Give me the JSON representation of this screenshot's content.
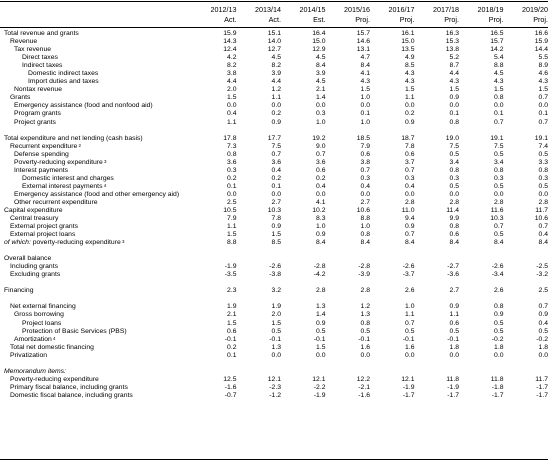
{
  "years": [
    "2012/13",
    "2013/14",
    "2014/15",
    "2015/16",
    "2016/17",
    "2017/18",
    "2018/19",
    "2019/20"
  ],
  "statuses": [
    "Act.",
    "Act.",
    "Est.",
    "Proj.",
    "Proj.",
    "Proj.",
    "Proj.",
    "Proj."
  ],
  "rows": [
    {
      "label": "Total revenue and grants",
      "indent": 0,
      "values": [
        "15.9",
        "15.1",
        "16.4",
        "15.7",
        "16.1",
        "16.3",
        "16.5",
        "16.6"
      ]
    },
    {
      "label": "Revenue",
      "indent": 1,
      "values": [
        "14.3",
        "14.0",
        "15.0",
        "14.6",
        "15.0",
        "15.3",
        "15.7",
        "15.9"
      ]
    },
    {
      "label": "Tax revenue",
      "indent": 2,
      "values": [
        "12.4",
        "12.7",
        "12.9",
        "13.1",
        "13.5",
        "13.8",
        "14.2",
        "14.4"
      ]
    },
    {
      "label": "Direct taxes",
      "indent": 3,
      "values": [
        "4.2",
        "4.5",
        "4.5",
        "4.7",
        "4.9",
        "5.2",
        "5.4",
        "5.5"
      ]
    },
    {
      "label": "Indirect taxes",
      "indent": 3,
      "values": [
        "8.2",
        "8.2",
        "8.4",
        "8.4",
        "8.5",
        "8.7",
        "8.8",
        "8.9"
      ]
    },
    {
      "label": "Domestic indirect taxes",
      "indent": 4,
      "values": [
        "3.8",
        "3.9",
        "3.9",
        "4.1",
        "4.3",
        "4.4",
        "4.5",
        "4.6"
      ]
    },
    {
      "label": "Import duties and taxes",
      "indent": 4,
      "values": [
        "4.4",
        "4.4",
        "4.5",
        "4.3",
        "4.3",
        "4.3",
        "4.3",
        "4.3"
      ]
    },
    {
      "label": "Nontax revenue",
      "indent": 2,
      "values": [
        "2.0",
        "1.2",
        "2.1",
        "1.5",
        "1.5",
        "1.5",
        "1.5",
        "1.5"
      ]
    },
    {
      "label": "Grants",
      "indent": 1,
      "values": [
        "1.5",
        "1.1",
        "1.4",
        "1.0",
        "1.1",
        "0.9",
        "0.8",
        "0.7"
      ]
    },
    {
      "label": "Emergency assistance (food and nonfood aid)",
      "indent": 2,
      "values": [
        "0.0",
        "0.0",
        "0.0",
        "0.0",
        "0.0",
        "0.0",
        "0.0",
        "0.0"
      ]
    },
    {
      "label": "Program grants",
      "indent": 2,
      "values": [
        "0.4",
        "0.2",
        "0.3",
        "0.1",
        "0.2",
        "0.1",
        "0.1",
        "0.1"
      ]
    },
    {
      "label": "Project grants",
      "indent": 2,
      "values": [
        "1.1",
        "0.9",
        "1.0",
        "1.0",
        "0.9",
        "0.8",
        "0.7",
        "0.7"
      ]
    },
    {
      "gap": true
    },
    {
      "label": "Total expenditure and net lending (cash basis)",
      "indent": 0,
      "values": [
        "17.8",
        "17.7",
        "19.2",
        "18.5",
        "18.7",
        "19.0",
        "19.1",
        "19.1"
      ]
    },
    {
      "label": "Recurrent expenditure",
      "sup": "2",
      "indent": 1,
      "values": [
        "7.3",
        "7.5",
        "9.0",
        "7.9",
        "7.8",
        "7.5",
        "7.5",
        "7.4"
      ]
    },
    {
      "label": "Defense spending",
      "indent": 2,
      "values": [
        "0.8",
        "0.7",
        "0.7",
        "0.6",
        "0.6",
        "0.5",
        "0.5",
        "0.5"
      ]
    },
    {
      "label": "Poverty-reducing expenditure",
      "sup": "3",
      "indent": 2,
      "values": [
        "3.6",
        "3.6",
        "3.6",
        "3.8",
        "3.7",
        "3.4",
        "3.4",
        "3.3"
      ]
    },
    {
      "label": "Interest payments",
      "indent": 2,
      "values": [
        "0.3",
        "0.4",
        "0.6",
        "0.7",
        "0.7",
        "0.8",
        "0.8",
        "0.8"
      ]
    },
    {
      "label": "Domestic interest and charges",
      "indent": 3,
      "values": [
        "0.2",
        "0.2",
        "0.2",
        "0.3",
        "0.3",
        "0.3",
        "0.3",
        "0.3"
      ]
    },
    {
      "label": "External interest payments",
      "sup": "4",
      "indent": 3,
      "values": [
        "0.1",
        "0.1",
        "0.4",
        "0.4",
        "0.4",
        "0.5",
        "0.5",
        "0.5"
      ]
    },
    {
      "label": "Emergency assistance (food and other emergency aid)",
      "indent": 2,
      "values": [
        "0.0",
        "0.0",
        "0.0",
        "0.0",
        "0.0",
        "0.0",
        "0.0",
        "0.0"
      ]
    },
    {
      "label": "Other recurrent expenditure",
      "indent": 2,
      "values": [
        "2.5",
        "2.7",
        "4.1",
        "2.7",
        "2.8",
        "2.8",
        "2.8",
        "2.8"
      ]
    },
    {
      "label": "Capital expenditure",
      "indent": 0,
      "values": [
        "10.5",
        "10.3",
        "10.2",
        "10.6",
        "11.0",
        "11.4",
        "11.6",
        "11.7"
      ]
    },
    {
      "label": "Central treasury",
      "indent": 1,
      "values": [
        "7.9",
        "7.8",
        "8.3",
        "8.8",
        "9.4",
        "9.9",
        "10.3",
        "10.6"
      ]
    },
    {
      "label": "External project grants",
      "indent": 1,
      "values": [
        "1.1",
        "0.9",
        "1.0",
        "1.0",
        "0.9",
        "0.8",
        "0.7",
        "0.7"
      ]
    },
    {
      "label": "External project loans",
      "indent": 1,
      "values": [
        "1.5",
        "1.5",
        "0.9",
        "0.8",
        "0.7",
        "0.6",
        "0.5",
        "0.4"
      ]
    },
    {
      "label": "of which: poverty-reducing expenditure",
      "sup": "3",
      "italic_prefix": "of which:",
      "indent": 0,
      "values": [
        "8.8",
        "8.5",
        "8.4",
        "8.4",
        "8.4",
        "8.4",
        "8.4",
        "8.4"
      ]
    },
    {
      "gap": true
    },
    {
      "label": "Overall balance",
      "indent": 0,
      "values": [
        "",
        "",
        "",
        "",
        "",
        "",
        "",
        ""
      ]
    },
    {
      "label": "Including grants",
      "indent": 1,
      "values": [
        "-1.9",
        "-2.6",
        "-2.8",
        "-2.8",
        "-2.6",
        "-2.7",
        "-2.6",
        "-2.5"
      ]
    },
    {
      "label": "Excluding grants",
      "indent": 1,
      "values": [
        "-3.5",
        "-3.8",
        "-4.2",
        "-3.9",
        "-3.7",
        "-3.6",
        "-3.4",
        "-3.2"
      ]
    },
    {
      "gap": true
    },
    {
      "label": "Financing",
      "indent": 0,
      "values": [
        "2.3",
        "3.2",
        "2.8",
        "2.8",
        "2.6",
        "2.7",
        "2.6",
        "2.5"
      ]
    },
    {
      "gap": true
    },
    {
      "label": "Net external financing",
      "indent": 1,
      "values": [
        "1.9",
        "1.9",
        "1.3",
        "1.2",
        "1.0",
        "0.9",
        "0.8",
        "0.7"
      ]
    },
    {
      "label": "Gross borrowing",
      "indent": 2,
      "values": [
        "2.1",
        "2.0",
        "1.4",
        "1.3",
        "1.1",
        "1.1",
        "0.9",
        "0.9"
      ]
    },
    {
      "label": "Project loans",
      "indent": 3,
      "values": [
        "1.5",
        "1.5",
        "0.9",
        "0.8",
        "0.7",
        "0.6",
        "0.5",
        "0.4"
      ]
    },
    {
      "label": "Protection of Basic Services (PBS)",
      "indent": 3,
      "values": [
        "0.6",
        "0.5",
        "0.5",
        "0.5",
        "0.5",
        "0.5",
        "0.5",
        "0.5"
      ]
    },
    {
      "label": "Amortization",
      "sup": "4",
      "indent": 2,
      "values": [
        "-0.1",
        "-0.1",
        "-0.1",
        "-0.1",
        "-0.1",
        "-0.1",
        "-0.2",
        "-0.2"
      ]
    },
    {
      "label": "Total net domestic financing",
      "indent": 1,
      "values": [
        "0.2",
        "1.3",
        "1.5",
        "1.6",
        "1.6",
        "1.8",
        "1.8",
        "1.8"
      ]
    },
    {
      "label": "Privatization",
      "indent": 1,
      "values": [
        "0.1",
        "0.0",
        "0.0",
        "0.0",
        "0.0",
        "0.0",
        "0.0",
        "0.0"
      ]
    },
    {
      "gap": true
    },
    {
      "label": "Memorandum items:",
      "italic": true,
      "indent": 0,
      "values": [
        "",
        "",
        "",
        "",
        "",
        "",
        "",
        ""
      ]
    },
    {
      "label": "Poverty-reducing expenditure",
      "indent": 1,
      "values": [
        "12.5",
        "12.1",
        "12.1",
        "12.2",
        "12.1",
        "11.8",
        "11.8",
        "11.7"
      ]
    },
    {
      "label": "Primary fiscal balance, including grants",
      "indent": 1,
      "values": [
        "-1.6",
        "-2.3",
        "-2.2",
        "-2.1",
        "-1.9",
        "-1.9",
        "-1.8",
        "-1.7"
      ]
    },
    {
      "label": "Domestic fiscal balance, including grants",
      "indent": 1,
      "values": [
        "-0.7",
        "-1.2",
        "-1.9",
        "-1.6",
        "-1.7",
        "-1.7",
        "-1.7",
        "-1.7"
      ]
    }
  ]
}
